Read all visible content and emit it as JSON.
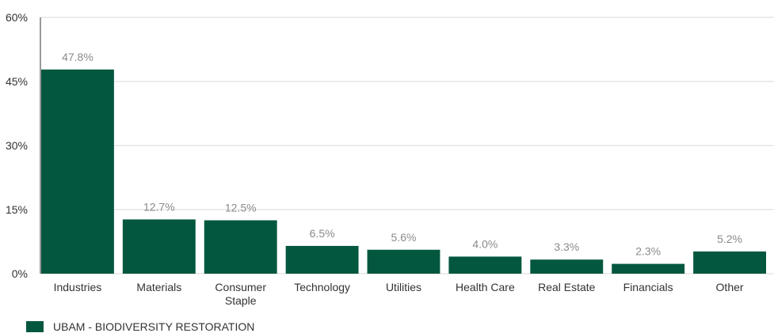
{
  "chart_data": {
    "type": "bar",
    "categories": [
      "Industries",
      "Materials",
      "Consumer\nStaple",
      "Technology",
      "Utilities",
      "Health Care",
      "Real Estate",
      "Financials",
      "Other"
    ],
    "series": [
      {
        "name": "UBAM - BIODIVERSITY RESTORATION",
        "values": [
          47.8,
          12.7,
          12.5,
          6.5,
          5.6,
          4.0,
          3.3,
          2.3,
          5.2
        ],
        "labels": [
          "47.8%",
          "12.7%",
          "12.5%",
          "6.5%",
          "5.6%",
          "4.0%",
          "3.3%",
          "2.3%",
          "5.2%"
        ]
      }
    ],
    "yticks": [
      0,
      15,
      30,
      45,
      60
    ],
    "ytick_labels": [
      "0%",
      "15%",
      "30%",
      "45%",
      "60%"
    ],
    "ylim": [
      0,
      60
    ],
    "grid": true,
    "legend_position": "bottom-left",
    "colors": {
      "bar": "#03573f",
      "grid": "#d9d9d9",
      "axis": "#333333",
      "data_label": "#8a8a8a"
    }
  }
}
